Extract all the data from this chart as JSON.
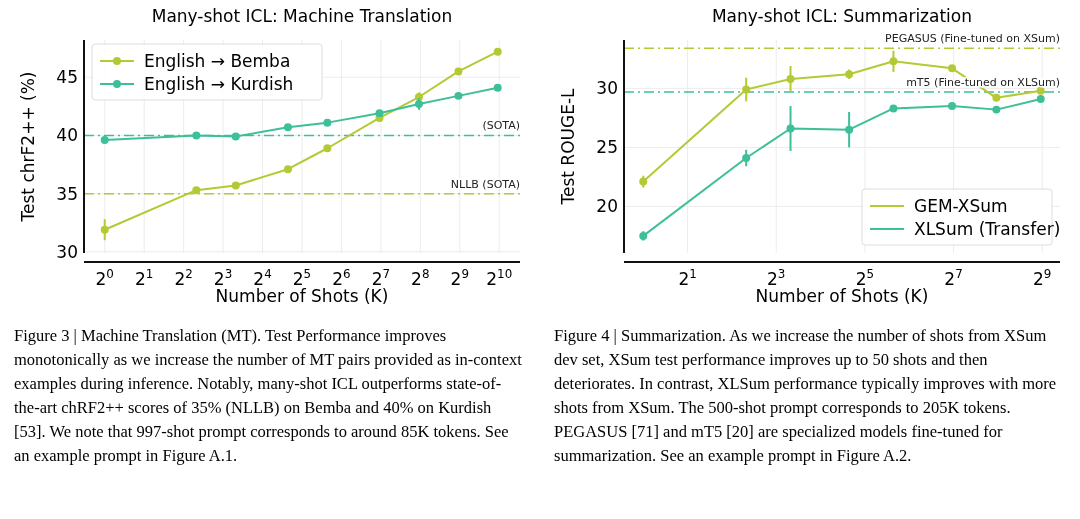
{
  "chart_data": [
    {
      "type": "line",
      "title": "Many-shot ICL: Machine Translation",
      "xlabel": "Number of Shots (K)",
      "ylabel": "Test chrF2++ (%)",
      "log": "x",
      "grid": true,
      "legend": "top left",
      "marker": "circle",
      "xlim": [
        0.695,
        1475
      ],
      "xticks": [
        {
          "value": 1,
          "label": "2$^{0}$"
        },
        {
          "value": 2,
          "label": "2$^{1}$"
        },
        {
          "value": 4,
          "label": "2$^{2}$"
        },
        {
          "value": 8,
          "label": "2$^{3}$"
        },
        {
          "value": 16,
          "label": "2$^{4}$"
        },
        {
          "value": 32,
          "label": "2$^{5}$"
        },
        {
          "value": 64,
          "label": "2$^{6}$"
        },
        {
          "value": 128,
          "label": "2$^{7}$"
        },
        {
          "value": 256,
          "label": "2$^{8}$"
        },
        {
          "value": 512,
          "label": "2$^{9}$"
        },
        {
          "value": 1024,
          "label": "2$^{10}$"
        }
      ],
      "ylim": [
        29.9,
        48.2
      ],
      "yticks": [
        30,
        35,
        40,
        45
      ],
      "x": [
        1,
        5,
        10,
        25,
        50,
        125,
        250,
        500,
        997
      ],
      "series": [
        {
          "name": "English → Bemba",
          "color": "#b5c934",
          "values": [
            31.9,
            35.3,
            35.7,
            37.1,
            38.9,
            41.5,
            43.3,
            45.5,
            47.2
          ],
          "errors": [
            0.9,
            null,
            null,
            null,
            null,
            null,
            0.4,
            null,
            null
          ]
        },
        {
          "name": "English → Kurdish",
          "color": "#3dbf99",
          "values": [
            39.6,
            40.0,
            39.9,
            40.7,
            41.1,
            41.9,
            42.7,
            43.4,
            44.1
          ],
          "errors": [
            null,
            null,
            null,
            null,
            null,
            null,
            0.5,
            null,
            null
          ]
        }
      ],
      "ref_lines": [
        {
          "axis": "y",
          "value": 40,
          "label": "(SOTA)",
          "color": "#3dbf99",
          "line_style": "dashed"
        },
        {
          "axis": "y",
          "value": 35,
          "label": "NLLB (SOTA)",
          "color": "#b5c934",
          "line_style": "dashed"
        }
      ],
      "annotations": [
        "Figure 3 | Machine Translation (MT). Test Performance improves monotonically as we increase the number of MT pairs provided as in-context examples during inference. Notably, many-shot ICL outperforms state-of-the-art chRF2++ scores of 35% (NLLB) on Bemba and 40% on Kurdish [53]. We note that 997-shot prompt corresponds to around 85K tokens. See an example prompt in Figure A.1."
      ]
    },
    {
      "type": "line",
      "title": "Many-shot ICL: Summarization",
      "xlabel": "Number of Shots (K)",
      "ylabel": "Test ROUGE-L",
      "log": "x",
      "grid": true,
      "legend": "bottom right",
      "marker": "circle",
      "xlim": [
        0.74,
        676
      ],
      "xticks": [
        {
          "value": 2,
          "label": "2$^{1}$"
        },
        {
          "value": 8,
          "label": "2$^{3}$"
        },
        {
          "value": 32,
          "label": "2$^{5}$"
        },
        {
          "value": 128,
          "label": "2$^{7}$"
        },
        {
          "value": 512,
          "label": "2$^{9}$"
        }
      ],
      "ylim": [
        16.05,
        34.1
      ],
      "yticks": [
        20,
        25,
        30
      ],
      "x": [
        1,
        5,
        10,
        25,
        50,
        125,
        250,
        500
      ],
      "series": [
        {
          "name": "GEM-XSum",
          "color": "#b5c934",
          "values": [
            22.1,
            29.9,
            30.8,
            31.2,
            32.3,
            31.7,
            29.2,
            29.8
          ],
          "errors": [
            0.5,
            1.0,
            1.1,
            0.4,
            0.9,
            null,
            null,
            null
          ]
        },
        {
          "name": "XLSum (Transfer)",
          "color": "#3dbf99",
          "values": [
            17.5,
            24.1,
            26.6,
            26.5,
            28.3,
            28.5,
            28.2,
            29.1
          ],
          "errors": [
            0.4,
            0.7,
            1.9,
            1.5,
            null,
            null,
            null,
            null
          ]
        }
      ],
      "ref_lines": [
        {
          "axis": "y",
          "value": 33.4,
          "label": "PEGASUS (Fine-tuned on XSum)",
          "color": "#b5c934",
          "line_style": "dashed"
        },
        {
          "axis": "y",
          "value": 29.7,
          "label": "mT5 (Fine-tuned on XLSum)",
          "color": "#3dbf99",
          "line_style": "dashed"
        }
      ],
      "annotations": [
        "Figure 4 | Summarization. As we increase the number of shots from XSum dev set, XSum test performance improves up to 50 shots and then deteriorates. In contrast, XLSum performance typically improves with more shots from XSum. The 500-shot prompt corresponds to 205K tokens. PEGASUS [71] and mT5 [20] are specialized models fine-tuned for summarization. See an example prompt in Figure A.2."
      ]
    }
  ]
}
